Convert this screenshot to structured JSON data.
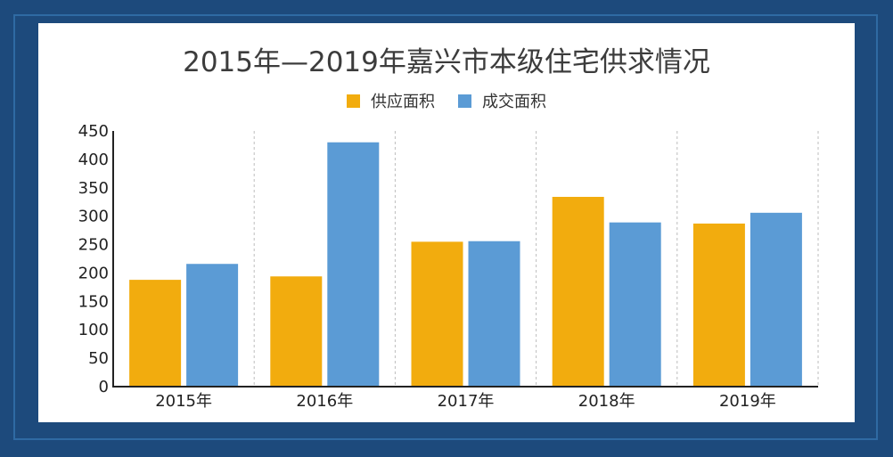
{
  "chart_data": {
    "type": "bar",
    "title": "2015年—2019年嘉兴市本级住宅供求情况",
    "categories": [
      "2015年",
      "2016年",
      "2017年",
      "2018年",
      "2019年"
    ],
    "series": [
      {
        "name": "供应面积",
        "color": "#f2ac0e",
        "values": [
          188,
          194,
          255,
          334,
          287
        ]
      },
      {
        "name": "成交面积",
        "color": "#5b9bd5",
        "values": [
          216,
          430,
          256,
          289,
          306
        ]
      }
    ],
    "ylim": [
      0,
      450
    ],
    "yticks": [
      "0",
      "50",
      "100",
      "150",
      "200",
      "250",
      "300",
      "350",
      "400",
      "450"
    ],
    "legend": "top-center",
    "grid": "vertical-dashed"
  }
}
